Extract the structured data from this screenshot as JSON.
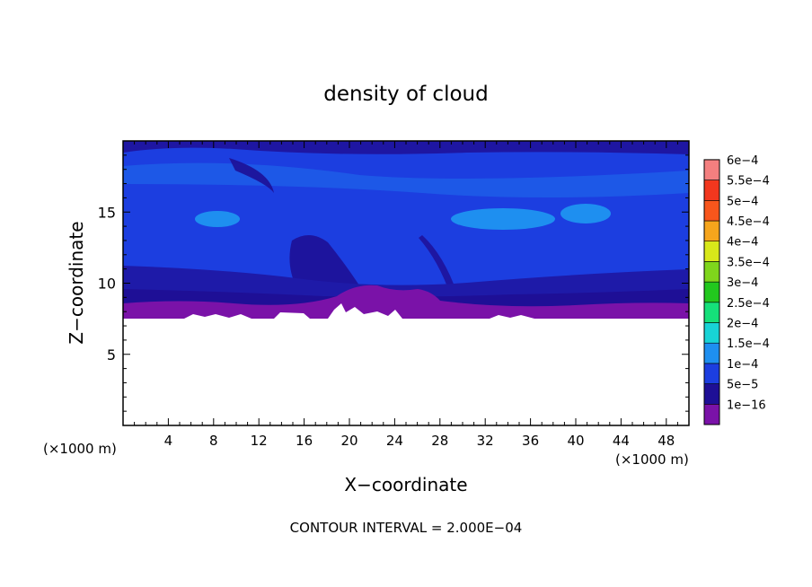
{
  "chart_data": {
    "type": "heatmap",
    "title": "density of cloud",
    "xlabel": "X−coordinate",
    "ylabel": "Z−coordinate",
    "x_unit_left": "(×1000 m)",
    "x_unit_right": "(×1000 m)",
    "footnote": "CONTOUR INTERVAL = 2.000E−04",
    "xlim": [
      0,
      50
    ],
    "ylim": [
      0,
      20
    ],
    "x_ticks": [
      {
        "value": 4,
        "label": "4"
      },
      {
        "value": 8,
        "label": "8"
      },
      {
        "value": 12,
        "label": "12"
      },
      {
        "value": 16,
        "label": "16"
      },
      {
        "value": 20,
        "label": "20"
      },
      {
        "value": 24,
        "label": "24"
      },
      {
        "value": 28,
        "label": "28"
      },
      {
        "value": 32,
        "label": "32"
      },
      {
        "value": 36,
        "label": "36"
      },
      {
        "value": 40,
        "label": "40"
      },
      {
        "value": 44,
        "label": "44"
      },
      {
        "value": 48,
        "label": "48"
      }
    ],
    "y_ticks": [
      {
        "value": 5,
        "label": "5"
      },
      {
        "value": 10,
        "label": "10"
      },
      {
        "value": 15,
        "label": "15"
      }
    ],
    "colorbar": [
      {
        "label": "1e−16",
        "color": "#7a12a8"
      },
      {
        "label": "5e−5",
        "color": "#1e0f96"
      },
      {
        "label": "1e−4",
        "color": "#1c3ee0"
      },
      {
        "label": "1.5e−4",
        "color": "#1e8ff0"
      },
      {
        "label": "2e−4",
        "color": "#18d3d6"
      },
      {
        "label": "2.5e−4",
        "color": "#15e07a"
      },
      {
        "label": "3e−4",
        "color": "#22c81e"
      },
      {
        "label": "3.5e−4",
        "color": "#7fd61c"
      },
      {
        "label": "4e−4",
        "color": "#d8e81a"
      },
      {
        "label": "4.5e−4",
        "color": "#f6a51c"
      },
      {
        "label": "5e−4",
        "color": "#f8561c"
      },
      {
        "label": "5.5e−4",
        "color": "#f2371e"
      },
      {
        "label": "6e−4",
        "color": "#f47f7f"
      }
    ],
    "field_regions": {
      "cloud_base_z": 7.5,
      "purple_layer_top_z": 8.6,
      "dark_blue_layer_top_z": 10.8,
      "top_z": 20
    },
    "colors": {
      "background_field": "#1c40e0",
      "purple": "#7a12a8",
      "dark_blue": "#1e0f96",
      "mid_blue": "#1c3ee0",
      "light_blue": "#1e8ff0"
    }
  }
}
